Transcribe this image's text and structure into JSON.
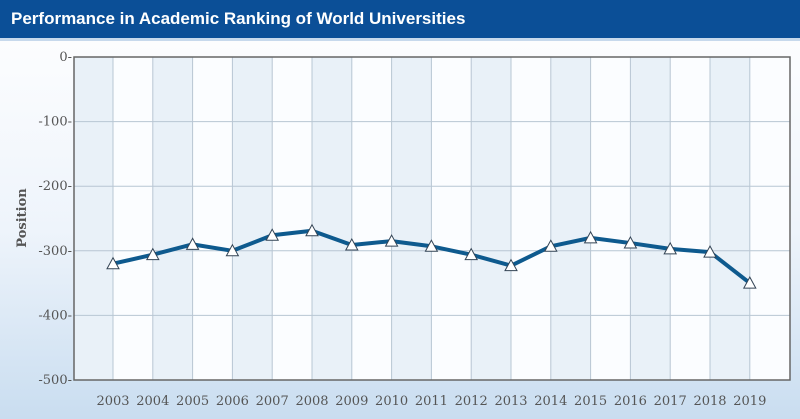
{
  "header": {
    "title": "Performance in Academic Ranking of World Universities"
  },
  "chart_data": {
    "type": "line",
    "title": "Performance in Academic Ranking of World Universities",
    "xlabel": "",
    "ylabel": "Position",
    "ylim": [
      -500,
      0
    ],
    "yticks": [
      0,
      -100,
      -200,
      -300,
      -400,
      -500
    ],
    "ytick_labels": [
      "0-",
      "-100-",
      "-200-",
      "-300-",
      "-400-",
      "-500-"
    ],
    "grid": true,
    "categories": [
      "2003",
      "2004",
      "2005",
      "2006",
      "2007",
      "2008",
      "2009",
      "2010",
      "2011",
      "2012",
      "2013",
      "2014",
      "2015",
      "2016",
      "2017",
      "2018",
      "2019"
    ],
    "series": [
      {
        "values": [
          -320,
          -306,
          -290,
          -300,
          -276,
          -269,
          -291,
          -285,
          -293,
          -306,
          -323,
          -293,
          -280,
          -288,
          -297,
          -302,
          -350
        ],
        "color": "#0e5a8e",
        "marker": "triangle"
      }
    ]
  }
}
